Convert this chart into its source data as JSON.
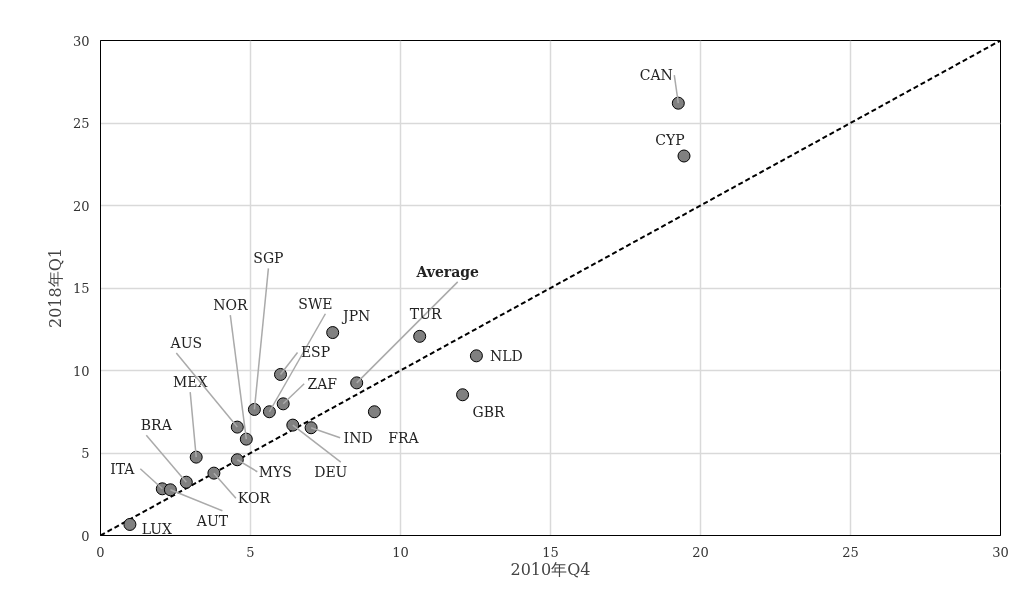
{
  "chart_data": {
    "type": "scatter",
    "xlabel": "2010年Q4",
    "ylabel": "2018年Q1",
    "xlim": [
      0,
      30
    ],
    "ylim": [
      0,
      30
    ],
    "xticks": [
      0,
      5,
      10,
      15,
      20,
      25,
      30
    ],
    "yticks": [
      0,
      5,
      10,
      15,
      20,
      25,
      30
    ],
    "grid": true,
    "series": [
      {
        "marker": "circle",
        "color": "#808080",
        "x": [
          0.98,
          2.06,
          2.33,
          2.86,
          3.78,
          3.19,
          4.56,
          4.56,
          4.86,
          5.13,
          5.63,
          6.0,
          6.09,
          6.41,
          7.02,
          9.13,
          7.74,
          8.54,
          10.64,
          12.53,
          12.07,
          19.26,
          19.45
        ],
        "values": [
          0.67,
          2.83,
          2.77,
          3.23,
          3.78,
          4.75,
          4.59,
          6.57,
          5.84,
          7.64,
          7.5,
          9.76,
          7.98,
          6.69,
          6.53,
          7.5,
          12.3,
          9.25,
          12.07,
          10.89,
          8.53,
          26.2,
          23.0
        ]
      },
      {
        "type": "line",
        "marker": "none",
        "color": "#000000",
        "line_style": "dashed",
        "x": [
          0,
          30
        ],
        "values": [
          0,
          30
        ]
      }
    ],
    "annotations": [
      {
        "text": "LUX",
        "x": 0.98,
        "y": 0.67
      },
      {
        "text": "ITA",
        "x": 2.06,
        "y": 2.83
      },
      {
        "text": "AUT",
        "x": 2.33,
        "y": 2.77
      },
      {
        "text": "BRA",
        "x": 2.86,
        "y": 3.23
      },
      {
        "text": "KOR",
        "x": 3.78,
        "y": 3.78
      },
      {
        "text": "MEX",
        "x": 3.19,
        "y": 4.75
      },
      {
        "text": "MYS",
        "x": 4.56,
        "y": 4.59
      },
      {
        "text": "AUS",
        "x": 4.56,
        "y": 6.57
      },
      {
        "text": "NOR",
        "x": 4.86,
        "y": 5.84
      },
      {
        "text": "SGP",
        "x": 5.13,
        "y": 7.64
      },
      {
        "text": "SWE",
        "x": 5.63,
        "y": 7.5
      },
      {
        "text": "ESP",
        "x": 6.0,
        "y": 9.76
      },
      {
        "text": "ZAF",
        "x": 6.09,
        "y": 7.98
      },
      {
        "text": "DEU",
        "x": 6.41,
        "y": 6.69
      },
      {
        "text": "IND",
        "x": 7.02,
        "y": 6.53
      },
      {
        "text": "FRA",
        "x": 9.13,
        "y": 7.5
      },
      {
        "text": "JPN",
        "x": 7.74,
        "y": 12.3
      },
      {
        "text": "Average",
        "x": 8.54,
        "y": 9.25
      },
      {
        "text": "TUR",
        "x": 10.64,
        "y": 12.07
      },
      {
        "text": "NLD",
        "x": 12.53,
        "y": 10.89
      },
      {
        "text": "GBR",
        "x": 12.07,
        "y": 8.53
      },
      {
        "text": "CAN",
        "x": 19.26,
        "y": 26.2
      },
      {
        "text": "CYP",
        "x": 19.45,
        "y": 23.0
      }
    ]
  }
}
